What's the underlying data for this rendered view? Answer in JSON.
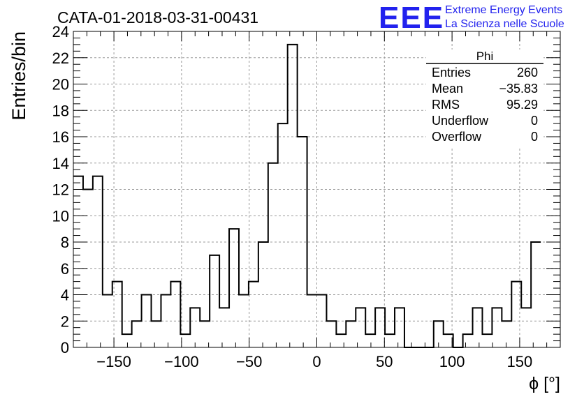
{
  "chart_data": {
    "type": "histogram",
    "title": "CATA-01-2018-03-31-00431",
    "ylabel": "Entries/bin",
    "xlabel": "ϕ [°]",
    "xlim": [
      -180,
      180
    ],
    "ylim": [
      0,
      24
    ],
    "grid": true,
    "bin_width": 7.2,
    "bin_edges_start": -180,
    "values": [
      13,
      12,
      13,
      4,
      5,
      1,
      2,
      4,
      2,
      4,
      5,
      1,
      3,
      2,
      7,
      3,
      9,
      4,
      5,
      8,
      14,
      17,
      23,
      16,
      4,
      4,
      2,
      1,
      2,
      3,
      1,
      3,
      1,
      3,
      0,
      0,
      0,
      2,
      1,
      0,
      1,
      3,
      1,
      3,
      2,
      5,
      3,
      8
    ],
    "x_ticks": [
      -150,
      -100,
      -50,
      0,
      50,
      100,
      150
    ],
    "x_tick_labels": [
      "−150",
      "−100",
      "−50",
      "0",
      "50",
      "100",
      "150"
    ],
    "y_ticks": [
      0,
      2,
      4,
      6,
      8,
      10,
      12,
      14,
      16,
      18,
      20,
      22,
      24
    ],
    "y_tick_labels": [
      "0",
      "2",
      "4",
      "6",
      "8",
      "10",
      "12",
      "14",
      "16",
      "18",
      "20",
      "22",
      "24"
    ],
    "stats_box": {
      "title": "Phi",
      "rows": [
        {
          "label": "Entries",
          "value": "260"
        },
        {
          "label": "Mean",
          "value": "−35.83"
        },
        {
          "label": "RMS",
          "value": "95.29"
        },
        {
          "label": "Underflow",
          "value": "0"
        },
        {
          "label": "Overflow",
          "value": "0"
        }
      ]
    }
  },
  "logo": {
    "mark": "EEE",
    "line1": "Extreme Energy Events",
    "line2": "La Scienza nelle Scuole",
    "color": "#2222ee"
  },
  "colors": {
    "line": "#000000",
    "grid": "#999999"
  }
}
